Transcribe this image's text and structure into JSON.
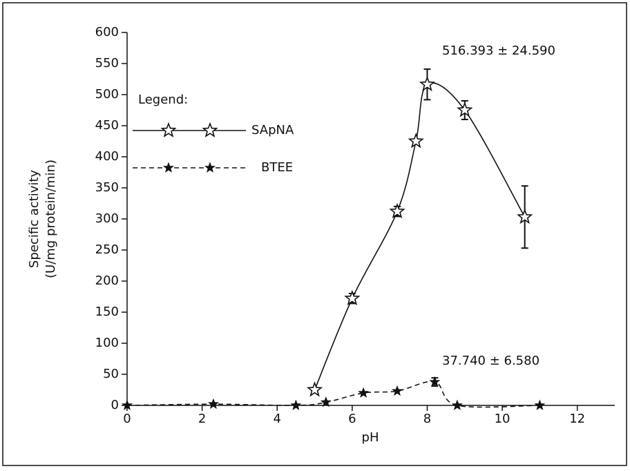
{
  "chart_data": {
    "type": "line",
    "y_label": [
      "Specific activity",
      "(U/mg protein/min)"
    ],
    "x_label": "pH",
    "legend_title": "Legend:",
    "xlim": [
      0,
      13
    ],
    "xticks": [
      0,
      2,
      4,
      6,
      8,
      10,
      12
    ],
    "ylim": [
      0,
      600
    ],
    "yticks": [
      0,
      50,
      100,
      150,
      200,
      250,
      300,
      350,
      400,
      450,
      500,
      550,
      600
    ],
    "series": [
      {
        "name": "SApNA",
        "color": "#111111",
        "dash": "solid",
        "marker": "hollow",
        "x": [
          5,
          6,
          7.2,
          7.7,
          8,
          9,
          10.6
        ],
        "values": [
          25,
          172,
          312,
          425,
          516.393,
          475,
          303
        ],
        "errors": [
          null,
          8,
          8,
          null,
          24.59,
          15,
          50
        ]
      },
      {
        "name": "BTEE",
        "color": "#111111",
        "dash": "dashed",
        "marker": "filled",
        "x": [
          0,
          2.3,
          4.5,
          5.3,
          6.3,
          7.2,
          8.2,
          8.8,
          11
        ],
        "values": [
          0,
          2,
          0,
          5,
          20,
          23,
          37.74,
          0,
          0
        ],
        "errors": [
          null,
          null,
          null,
          null,
          null,
          null,
          6.58,
          null,
          null
        ]
      }
    ],
    "annotations": [
      "516.393 ± 24.590",
      "37.740 ± 6.580"
    ]
  }
}
